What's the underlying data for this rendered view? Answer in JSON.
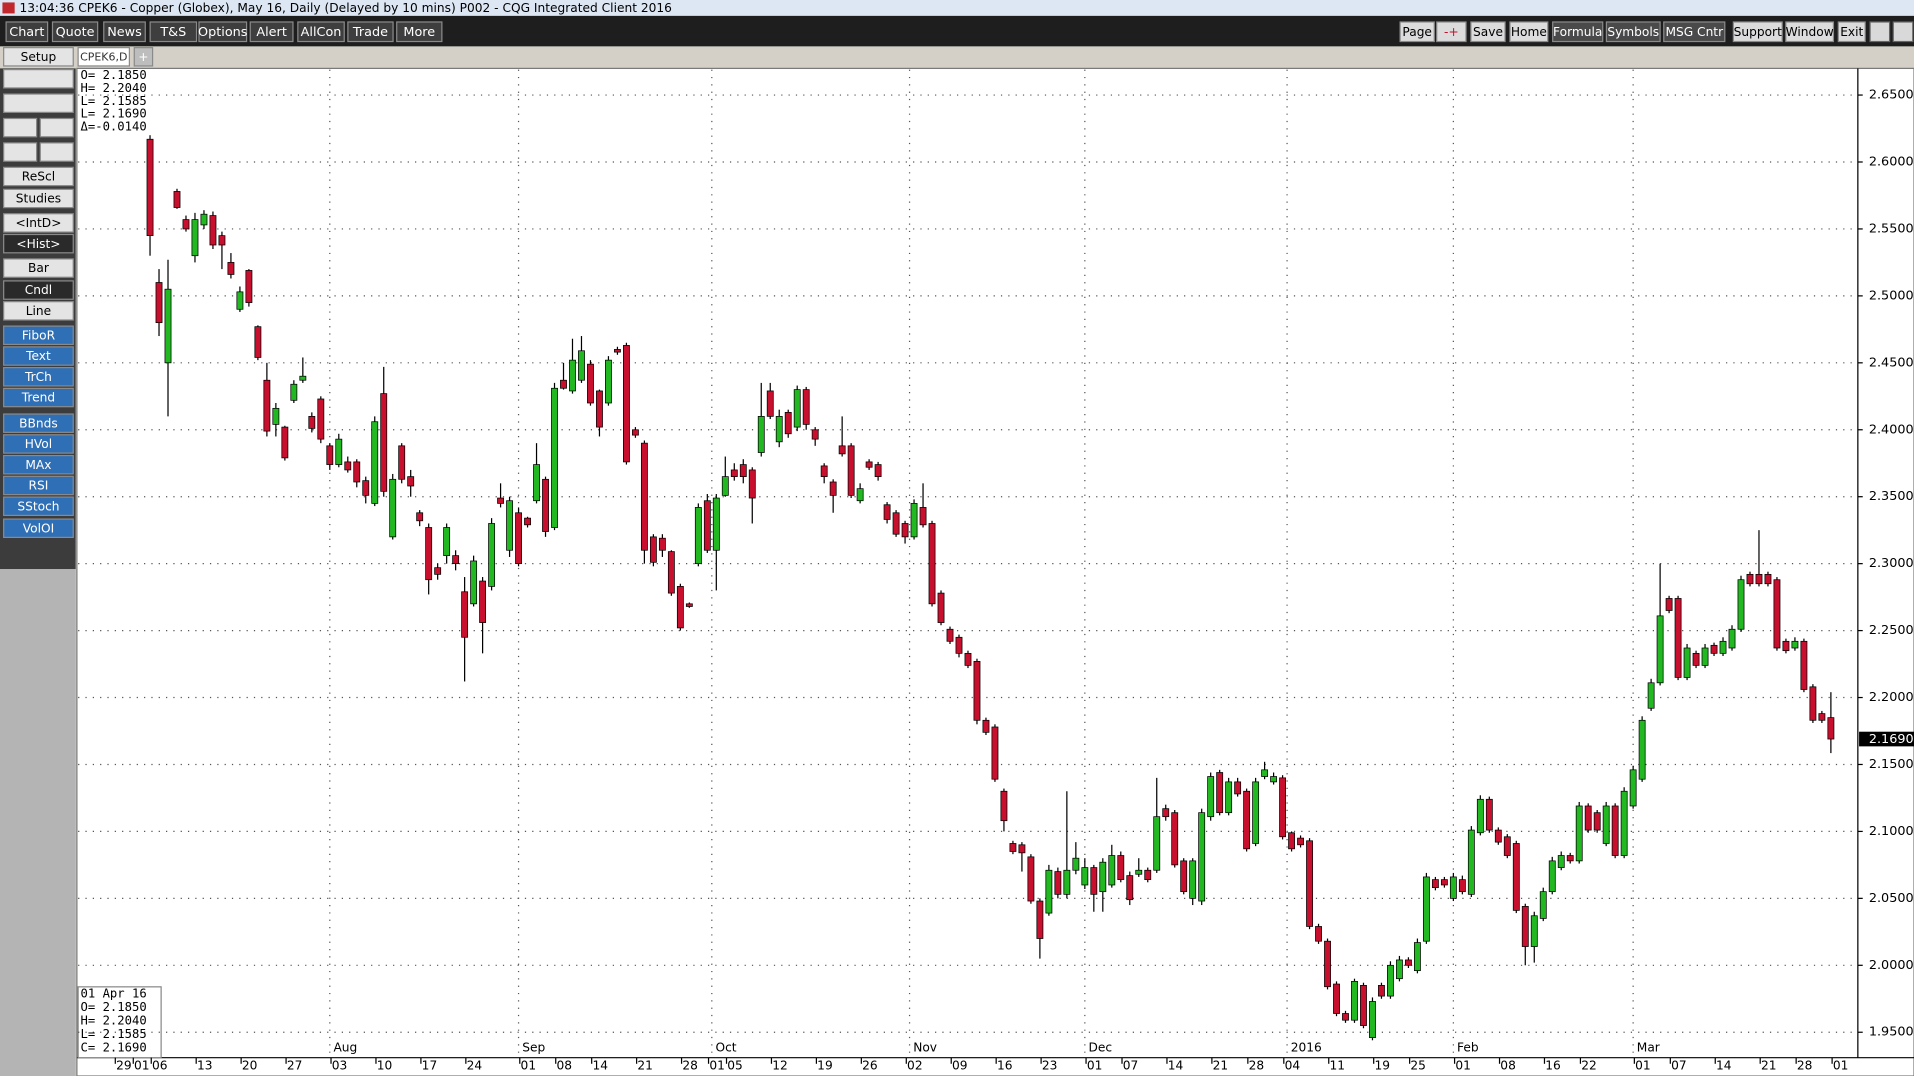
{
  "title_bar": "13:04:36   CPEK6 - Copper (Globex), May 16, Daily (Delayed by 10 mins)   P002 - CQG Integrated Client 2016",
  "menu": [
    "Chart",
    "Quote",
    "News",
    "T&S",
    "Options",
    "Alert",
    "AllCon",
    "Trade",
    "More"
  ],
  "right_menu": [
    "Page",
    "-+",
    "Save",
    "Home",
    "Formula",
    "Symbols",
    "MSG Cntr",
    "Support",
    "Window",
    "Exit"
  ],
  "setup": "Setup",
  "tab": "CPEK6,D",
  "tab_add": "+",
  "sidebar": [
    "ReScl",
    "Studies",
    "<IntD>",
    "<Hist>",
    "Bar",
    "Cndl",
    "Line",
    "FiboR",
    "Text",
    "TrCh",
    "Trend",
    "BBnds",
    "HVol",
    "MAx",
    "RSI",
    "SStoch",
    "VolOI"
  ],
  "readout": [
    "O= 2.1850",
    "H= 2.2040",
    "L= 2.1585",
    "L= 2.1690",
    "Δ=-0.0140"
  ],
  "bar_info": {
    "date": "01 Apr 16",
    "lines": [
      "O= 2.1850",
      "H= 2.2040",
      "L= 2.1585",
      "C= 2.1690"
    ]
  },
  "chart_data": {
    "type": "candlestick",
    "up_color": "#22b822",
    "down_color": "#c8102e",
    "grid": true,
    "open": [
      2.617,
      2.51,
      2.45,
      2.578,
      2.557,
      2.53,
      2.553,
      2.56,
      2.545,
      2.525,
      2.49,
      2.519,
      2.477,
      2.437,
      2.404,
      2.402,
      2.422,
      2.437,
      2.41,
      2.423,
      2.388,
      2.374,
      2.376,
      2.376,
      2.362,
      2.345,
      2.427,
      2.32,
      2.388,
      2.365,
      2.338,
      2.327,
      2.297,
      2.306,
      2.306,
      2.279,
      2.27,
      2.287,
      2.283,
      2.349,
      2.31,
      2.338,
      2.334,
      2.347,
      2.363,
      2.327,
      2.437,
      2.429,
      2.437,
      2.449,
      2.429,
      2.42,
      2.46,
      2.463,
      2.4,
      2.39,
      2.32,
      2.319,
      2.309,
      2.283,
      2.27,
      2.3,
      2.347,
      2.31,
      2.351,
      2.37,
      2.374,
      2.37,
      2.383,
      2.429,
      2.391,
      2.413,
      2.402,
      2.43,
      2.4,
      2.373,
      2.361,
      2.388,
      2.388,
      2.347,
      2.376,
      2.374,
      2.344,
      2.338,
      2.33,
      2.32,
      2.342,
      2.33,
      2.278,
      2.251,
      2.245,
      2.233,
      2.227,
      2.183,
      2.178,
      2.13,
      2.091,
      2.09,
      2.081,
      2.048,
      2.039,
      2.07,
      2.053,
      2.071,
      2.06,
      2.073,
      2.055,
      2.06,
      2.082,
      2.067,
      2.068,
      2.071,
      2.071,
      2.117,
      2.114,
      2.078,
      2.05,
      2.048,
      2.111,
      2.144,
      2.114,
      2.137,
      2.13,
      2.091,
      2.141,
      2.137,
      2.14,
      2.099,
      2.095,
      2.093,
      2.029,
      2.018,
      1.986,
      1.964,
      1.959,
      1.985,
      1.946,
      1.985,
      1.977,
      1.99,
      2.004,
      1.996,
      2.018,
      2.064,
      2.064,
      2.05,
      2.064,
      2.053,
      2.099,
      2.124,
      2.101,
      2.096,
      2.091,
      2.044,
      2.014,
      2.035,
      2.055,
      2.073,
      2.082,
      2.078,
      2.119,
      2.114,
      2.091,
      2.119,
      2.082,
      2.119,
      2.139,
      2.192,
      2.211,
      2.274,
      2.274,
      2.215,
      2.233,
      2.224,
      2.239,
      2.233,
      2.237,
      2.251,
      2.292,
      2.292,
      2.292,
      2.288,
      2.242,
      2.237,
      2.242,
      2.208,
      2.188,
      2.185
    ],
    "high": [
      2.62,
      2.52,
      2.527,
      2.58,
      2.56,
      2.562,
      2.564,
      2.563,
      2.548,
      2.532,
      2.507,
      2.52,
      2.478,
      2.45,
      2.42,
      2.403,
      2.437,
      2.454,
      2.413,
      2.425,
      2.39,
      2.397,
      2.38,
      2.378,
      2.365,
      2.41,
      2.447,
      2.367,
      2.39,
      2.37,
      2.34,
      2.33,
      2.3,
      2.33,
      2.31,
      2.29,
      2.306,
      2.29,
      2.334,
      2.36,
      2.35,
      2.342,
      2.335,
      2.39,
      2.365,
      2.435,
      2.45,
      2.468,
      2.47,
      2.452,
      2.43,
      2.455,
      2.462,
      2.465,
      2.402,
      2.392,
      2.322,
      2.322,
      2.31,
      2.285,
      2.271,
      2.345,
      2.352,
      2.352,
      2.38,
      2.375,
      2.378,
      2.372,
      2.435,
      2.435,
      2.415,
      2.415,
      2.433,
      2.432,
      2.402,
      2.375,
      2.363,
      2.41,
      2.39,
      2.36,
      2.378,
      2.376,
      2.346,
      2.34,
      2.332,
      2.348,
      2.36,
      2.332,
      2.28,
      2.253,
      2.247,
      2.235,
      2.229,
      2.185,
      2.18,
      2.132,
      2.093,
      2.092,
      2.083,
      2.05,
      2.075,
      2.073,
      2.13,
      2.092,
      2.08,
      2.075,
      2.08,
      2.09,
      2.085,
      2.07,
      2.08,
      2.073,
      2.14,
      2.12,
      2.116,
      2.08,
      2.08,
      2.117,
      2.144,
      2.146,
      2.14,
      2.14,
      2.132,
      2.14,
      2.152,
      2.144,
      2.142,
      2.1,
      2.097,
      2.095,
      2.031,
      2.02,
      1.988,
      1.966,
      1.99,
      1.987,
      1.976,
      1.987,
      2.003,
      2.007,
      2.006,
      2.02,
      2.069,
      2.066,
      2.066,
      2.069,
      2.067,
      2.104,
      2.127,
      2.126,
      2.103,
      2.098,
      2.093,
      2.046,
      2.04,
      2.058,
      2.081,
      2.085,
      2.084,
      2.122,
      2.121,
      2.116,
      2.122,
      2.121,
      2.133,
      2.149,
      2.186,
      2.214,
      2.3,
      2.276,
      2.276,
      2.24,
      2.235,
      2.24,
      2.241,
      2.245,
      2.254,
      2.291,
      2.294,
      2.325,
      2.294,
      2.29,
      2.244,
      2.245,
      2.244,
      2.21,
      2.19,
      2.204
    ],
    "low": [
      2.53,
      2.47,
      2.41,
      2.565,
      2.548,
      2.525,
      2.55,
      2.535,
      2.52,
      2.513,
      2.488,
      2.492,
      2.452,
      2.395,
      2.395,
      2.377,
      2.42,
      2.435,
      2.398,
      2.39,
      2.37,
      2.372,
      2.368,
      2.357,
      2.345,
      2.343,
      2.35,
      2.318,
      2.36,
      2.35,
      2.328,
      2.277,
      2.288,
      2.3,
      2.295,
      2.212,
      2.268,
      2.233,
      2.28,
      2.342,
      2.305,
      2.298,
      2.327,
      2.345,
      2.32,
      2.325,
      2.43,
      2.427,
      2.435,
      2.418,
      2.395,
      2.418,
      2.456,
      2.374,
      2.394,
      2.3,
      2.298,
      2.305,
      2.276,
      2.25,
      2.267,
      2.298,
      2.308,
      2.28,
      2.35,
      2.362,
      2.36,
      2.33,
      2.38,
      2.408,
      2.387,
      2.394,
      2.399,
      2.4,
      2.388,
      2.36,
      2.338,
      2.38,
      2.349,
      2.345,
      2.37,
      2.362,
      2.33,
      2.32,
      2.315,
      2.318,
      2.327,
      2.268,
      2.254,
      2.24,
      2.23,
      2.222,
      2.18,
      2.172,
      2.137,
      2.1,
      2.083,
      2.07,
      2.046,
      2.005,
      2.037,
      2.05,
      2.05,
      2.068,
      2.057,
      2.04,
      2.04,
      2.058,
      2.062,
      2.045,
      2.066,
      2.062,
      2.069,
      2.108,
      2.073,
      2.053,
      2.045,
      2.045,
      2.108,
      2.112,
      2.112,
      2.126,
      2.085,
      2.089,
      2.139,
      2.135,
      2.094,
      2.085,
      2.088,
      2.027,
      2.016,
      1.982,
      1.962,
      1.957,
      1.957,
      1.953,
      1.944,
      1.975,
      1.975,
      1.988,
      1.998,
      1.994,
      2.016,
      2.056,
      2.058,
      2.048,
      2.053,
      2.051,
      2.097,
      2.099,
      2.09,
      2.08,
      2.039,
      2.0,
      2.002,
      2.033,
      2.053,
      2.071,
      2.076,
      2.076,
      2.099,
      2.099,
      2.089,
      2.08,
      2.08,
      2.117,
      2.137,
      2.19,
      2.209,
      2.263,
      2.213,
      2.213,
      2.222,
      2.222,
      2.231,
      2.231,
      2.235,
      2.249,
      2.283,
      2.283,
      2.283,
      2.235,
      2.233,
      2.235,
      2.204,
      2.181,
      2.181,
      2.1585
    ],
    "close": [
      2.545,
      2.48,
      2.505,
      2.566,
      2.55,
      2.557,
      2.561,
      2.538,
      2.538,
      2.516,
      2.503,
      2.495,
      2.454,
      2.399,
      2.416,
      2.379,
      2.434,
      2.44,
      2.401,
      2.393,
      2.374,
      2.393,
      2.37,
      2.361,
      2.351,
      2.406,
      2.354,
      2.363,
      2.363,
      2.358,
      2.332,
      2.288,
      2.292,
      2.327,
      2.3,
      2.245,
      2.302,
      2.256,
      2.33,
      2.345,
      2.347,
      2.3,
      2.329,
      2.374,
      2.324,
      2.431,
      2.431,
      2.452,
      2.459,
      2.42,
      2.402,
      2.452,
      2.458,
      2.376,
      2.396,
      2.31,
      2.301,
      2.31,
      2.278,
      2.252,
      2.268,
      2.342,
      2.31,
      2.349,
      2.365,
      2.365,
      2.365,
      2.349,
      2.41,
      2.41,
      2.41,
      2.397,
      2.43,
      2.404,
      2.393,
      2.365,
      2.351,
      2.382,
      2.351,
      2.356,
      2.372,
      2.365,
      2.333,
      2.322,
      2.32,
      2.345,
      2.329,
      2.27,
      2.256,
      2.242,
      2.233,
      2.224,
      2.183,
      2.174,
      2.139,
      2.108,
      2.085,
      2.084,
      2.048,
      2.02,
      2.071,
      2.053,
      2.071,
      2.08,
      2.073,
      2.053,
      2.077,
      2.082,
      2.064,
      2.049,
      2.071,
      2.064,
      2.111,
      2.111,
      2.075,
      2.055,
      2.078,
      2.114,
      2.141,
      2.114,
      2.137,
      2.128,
      2.087,
      2.137,
      2.146,
      2.141,
      2.096,
      2.087,
      2.09,
      2.029,
      2.018,
      1.984,
      1.964,
      1.959,
      1.988,
      1.955,
      1.973,
      1.977,
      2.0,
      2.004,
      2.0,
      2.017,
      2.066,
      2.058,
      2.06,
      2.066,
      2.055,
      2.101,
      2.124,
      2.101,
      2.092,
      2.082,
      2.041,
      2.014,
      2.037,
      2.055,
      2.078,
      2.082,
      2.078,
      2.119,
      2.101,
      2.101,
      2.119,
      2.082,
      2.13,
      2.146,
      2.183,
      2.211,
      2.261,
      2.265,
      2.215,
      2.237,
      2.224,
      2.237,
      2.233,
      2.242,
      2.251,
      2.288,
      2.285,
      2.285,
      2.285,
      2.237,
      2.235,
      2.242,
      2.206,
      2.183,
      2.183,
      2.169
    ],
    "xlim": [
      -8,
      190
    ],
    "xticks": [
      {
        "value": -4,
        "label": "29"
      },
      {
        "value": -2,
        "label": "01"
      },
      {
        "value": 0,
        "label": "06"
      },
      {
        "value": 5,
        "label": "13"
      },
      {
        "value": 10,
        "label": "20"
      },
      {
        "value": 15,
        "label": "27"
      },
      {
        "value": 20,
        "label": "03"
      },
      {
        "value": 25,
        "label": "10"
      },
      {
        "value": 30,
        "label": "17"
      },
      {
        "value": 35,
        "label": "24"
      },
      {
        "value": 41,
        "label": "01"
      },
      {
        "value": 45,
        "label": "08"
      },
      {
        "value": 49,
        "label": "14"
      },
      {
        "value": 54,
        "label": "21"
      },
      {
        "value": 59,
        "label": "28"
      },
      {
        "value": 62,
        "label": "01"
      },
      {
        "value": 64,
        "label": "05"
      },
      {
        "value": 69,
        "label": "12"
      },
      {
        "value": 74,
        "label": "19"
      },
      {
        "value": 79,
        "label": "26"
      },
      {
        "value": 84,
        "label": "02"
      },
      {
        "value": 89,
        "label": "09"
      },
      {
        "value": 94,
        "label": "16"
      },
      {
        "value": 99,
        "label": "23"
      },
      {
        "value": 104,
        "label": "01"
      },
      {
        "value": 108,
        "label": "07"
      },
      {
        "value": 113,
        "label": "14"
      },
      {
        "value": 118,
        "label": "21"
      },
      {
        "value": 122,
        "label": "28"
      },
      {
        "value": 126,
        "label": "04"
      },
      {
        "value": 131,
        "label": "11"
      },
      {
        "value": 136,
        "label": "19"
      },
      {
        "value": 140,
        "label": "25"
      },
      {
        "value": 145,
        "label": "01"
      },
      {
        "value": 150,
        "label": "08"
      },
      {
        "value": 155,
        "label": "16"
      },
      {
        "value": 159,
        "label": "22"
      },
      {
        "value": 165,
        "label": "01"
      },
      {
        "value": 169,
        "label": "07"
      },
      {
        "value": 174,
        "label": "14"
      },
      {
        "value": 179,
        "label": "21"
      },
      {
        "value": 183,
        "label": "28"
      },
      {
        "value": 187,
        "label": "01"
      }
    ],
    "month_ticks": [
      {
        "value": 20,
        "label": "Aug"
      },
      {
        "value": 41,
        "label": "Sep"
      },
      {
        "value": 62.5,
        "label": "Oct"
      },
      {
        "value": 84.5,
        "label": "Nov"
      },
      {
        "value": 104,
        "label": "Dec"
      },
      {
        "value": 126.5,
        "label": "2016"
      },
      {
        "value": 145,
        "label": "Feb"
      },
      {
        "value": 165,
        "label": "Mar"
      }
    ],
    "ylim": [
      1.931,
      2.669
    ],
    "yticks": [
      {
        "value": 2.65,
        "label": "2.6500"
      },
      {
        "value": 2.6,
        "label": "2.6000"
      },
      {
        "value": 2.55,
        "label": "2.5500"
      },
      {
        "value": 2.5,
        "label": "2.5000"
      },
      {
        "value": 2.45,
        "label": "2.4500"
      },
      {
        "value": 2.4,
        "label": "2.4000"
      },
      {
        "value": 2.35,
        "label": "2.3500"
      },
      {
        "value": 2.3,
        "label": "2.3000"
      },
      {
        "value": 2.25,
        "label": "2.2500"
      },
      {
        "value": 2.2,
        "label": "2.2000"
      },
      {
        "value": 2.15,
        "label": "2.1500"
      },
      {
        "value": 2.1,
        "label": "2.1000"
      },
      {
        "value": 2.05,
        "label": "2.0500"
      },
      {
        "value": 2.0,
        "label": "2.0000"
      },
      {
        "value": 1.95,
        "label": "1.9500"
      }
    ],
    "price_marker": {
      "value": 2.169,
      "label": "2.1690"
    }
  }
}
